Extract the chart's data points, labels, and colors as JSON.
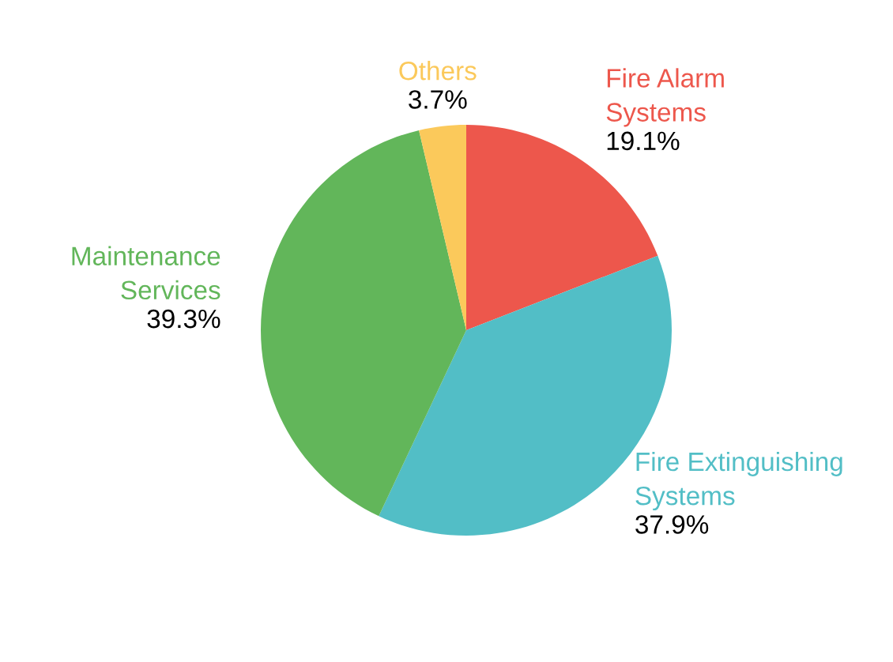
{
  "chart_data": {
    "type": "pie",
    "categories": [
      "Fire Alarm\nSystems",
      "Fire Extinguishing\nSystems",
      "Maintenance\nServices",
      "Others"
    ],
    "values": [
      19.1,
      37.9,
      39.3,
      3.7
    ],
    "colors": [
      "#ed574c",
      "#52bec6",
      "#62b65a",
      "#fbc95b"
    ],
    "value_labels": [
      "19.1%",
      "37.9%",
      "39.3%",
      "3.7%"
    ]
  }
}
